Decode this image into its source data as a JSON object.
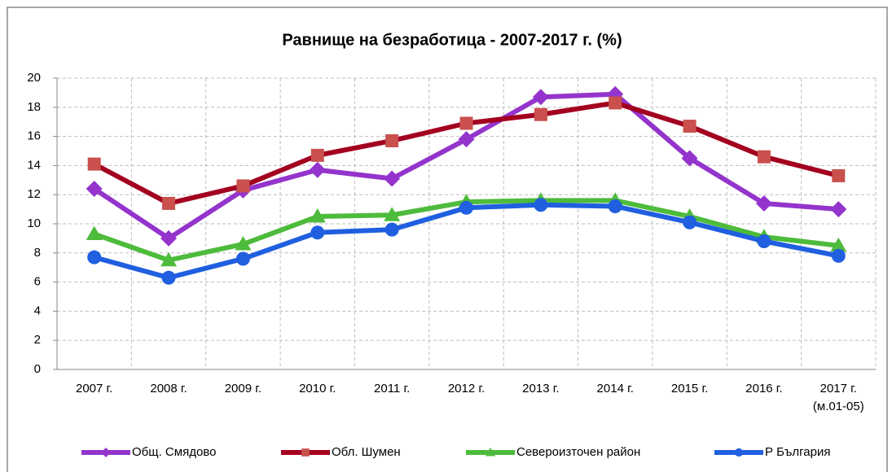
{
  "chart_data": {
    "type": "line",
    "title": "Равнище на безработица  - 2007-2017 г. (%)",
    "categories": [
      "2007 г.",
      "2008 г.",
      "2009 г.",
      "2010 г.",
      "2011 г.",
      "2012 г.",
      "2013 г.",
      "2014 г.",
      "2015 г.",
      "2016 г.",
      "2017 г.\n(м.01-05)"
    ],
    "series": [
      {
        "name": "Общ. Смядово",
        "color": "#9434cc",
        "marker": "diamond",
        "values": [
          12.4,
          9.0,
          12.3,
          13.7,
          13.1,
          15.8,
          18.7,
          18.9,
          14.5,
          11.4,
          11.0
        ]
      },
      {
        "name": "Обл. Шумен",
        "color": "#a3001f",
        "marker_color": "#c9504d",
        "marker": "square",
        "values": [
          14.1,
          11.4,
          12.6,
          14.7,
          15.7,
          16.9,
          17.5,
          18.3,
          16.7,
          14.6,
          13.3
        ]
      },
      {
        "name": "Североизточен район",
        "color": "#4dbb3b",
        "marker": "triangle",
        "values": [
          9.3,
          7.5,
          8.6,
          10.5,
          10.6,
          11.5,
          11.6,
          11.6,
          10.5,
          9.1,
          8.5
        ]
      },
      {
        "name": "Р България",
        "color": "#1f5fe0",
        "marker": "circle",
        "values": [
          7.7,
          6.3,
          7.6,
          9.4,
          9.6,
          11.1,
          11.3,
          11.2,
          10.1,
          8.8,
          7.8
        ]
      }
    ],
    "ylim": [
      0,
      20
    ],
    "yticks": [
      0,
      2,
      4,
      6,
      8,
      10,
      12,
      14,
      16,
      18,
      20
    ],
    "grid": true,
    "legend": "bottom"
  }
}
